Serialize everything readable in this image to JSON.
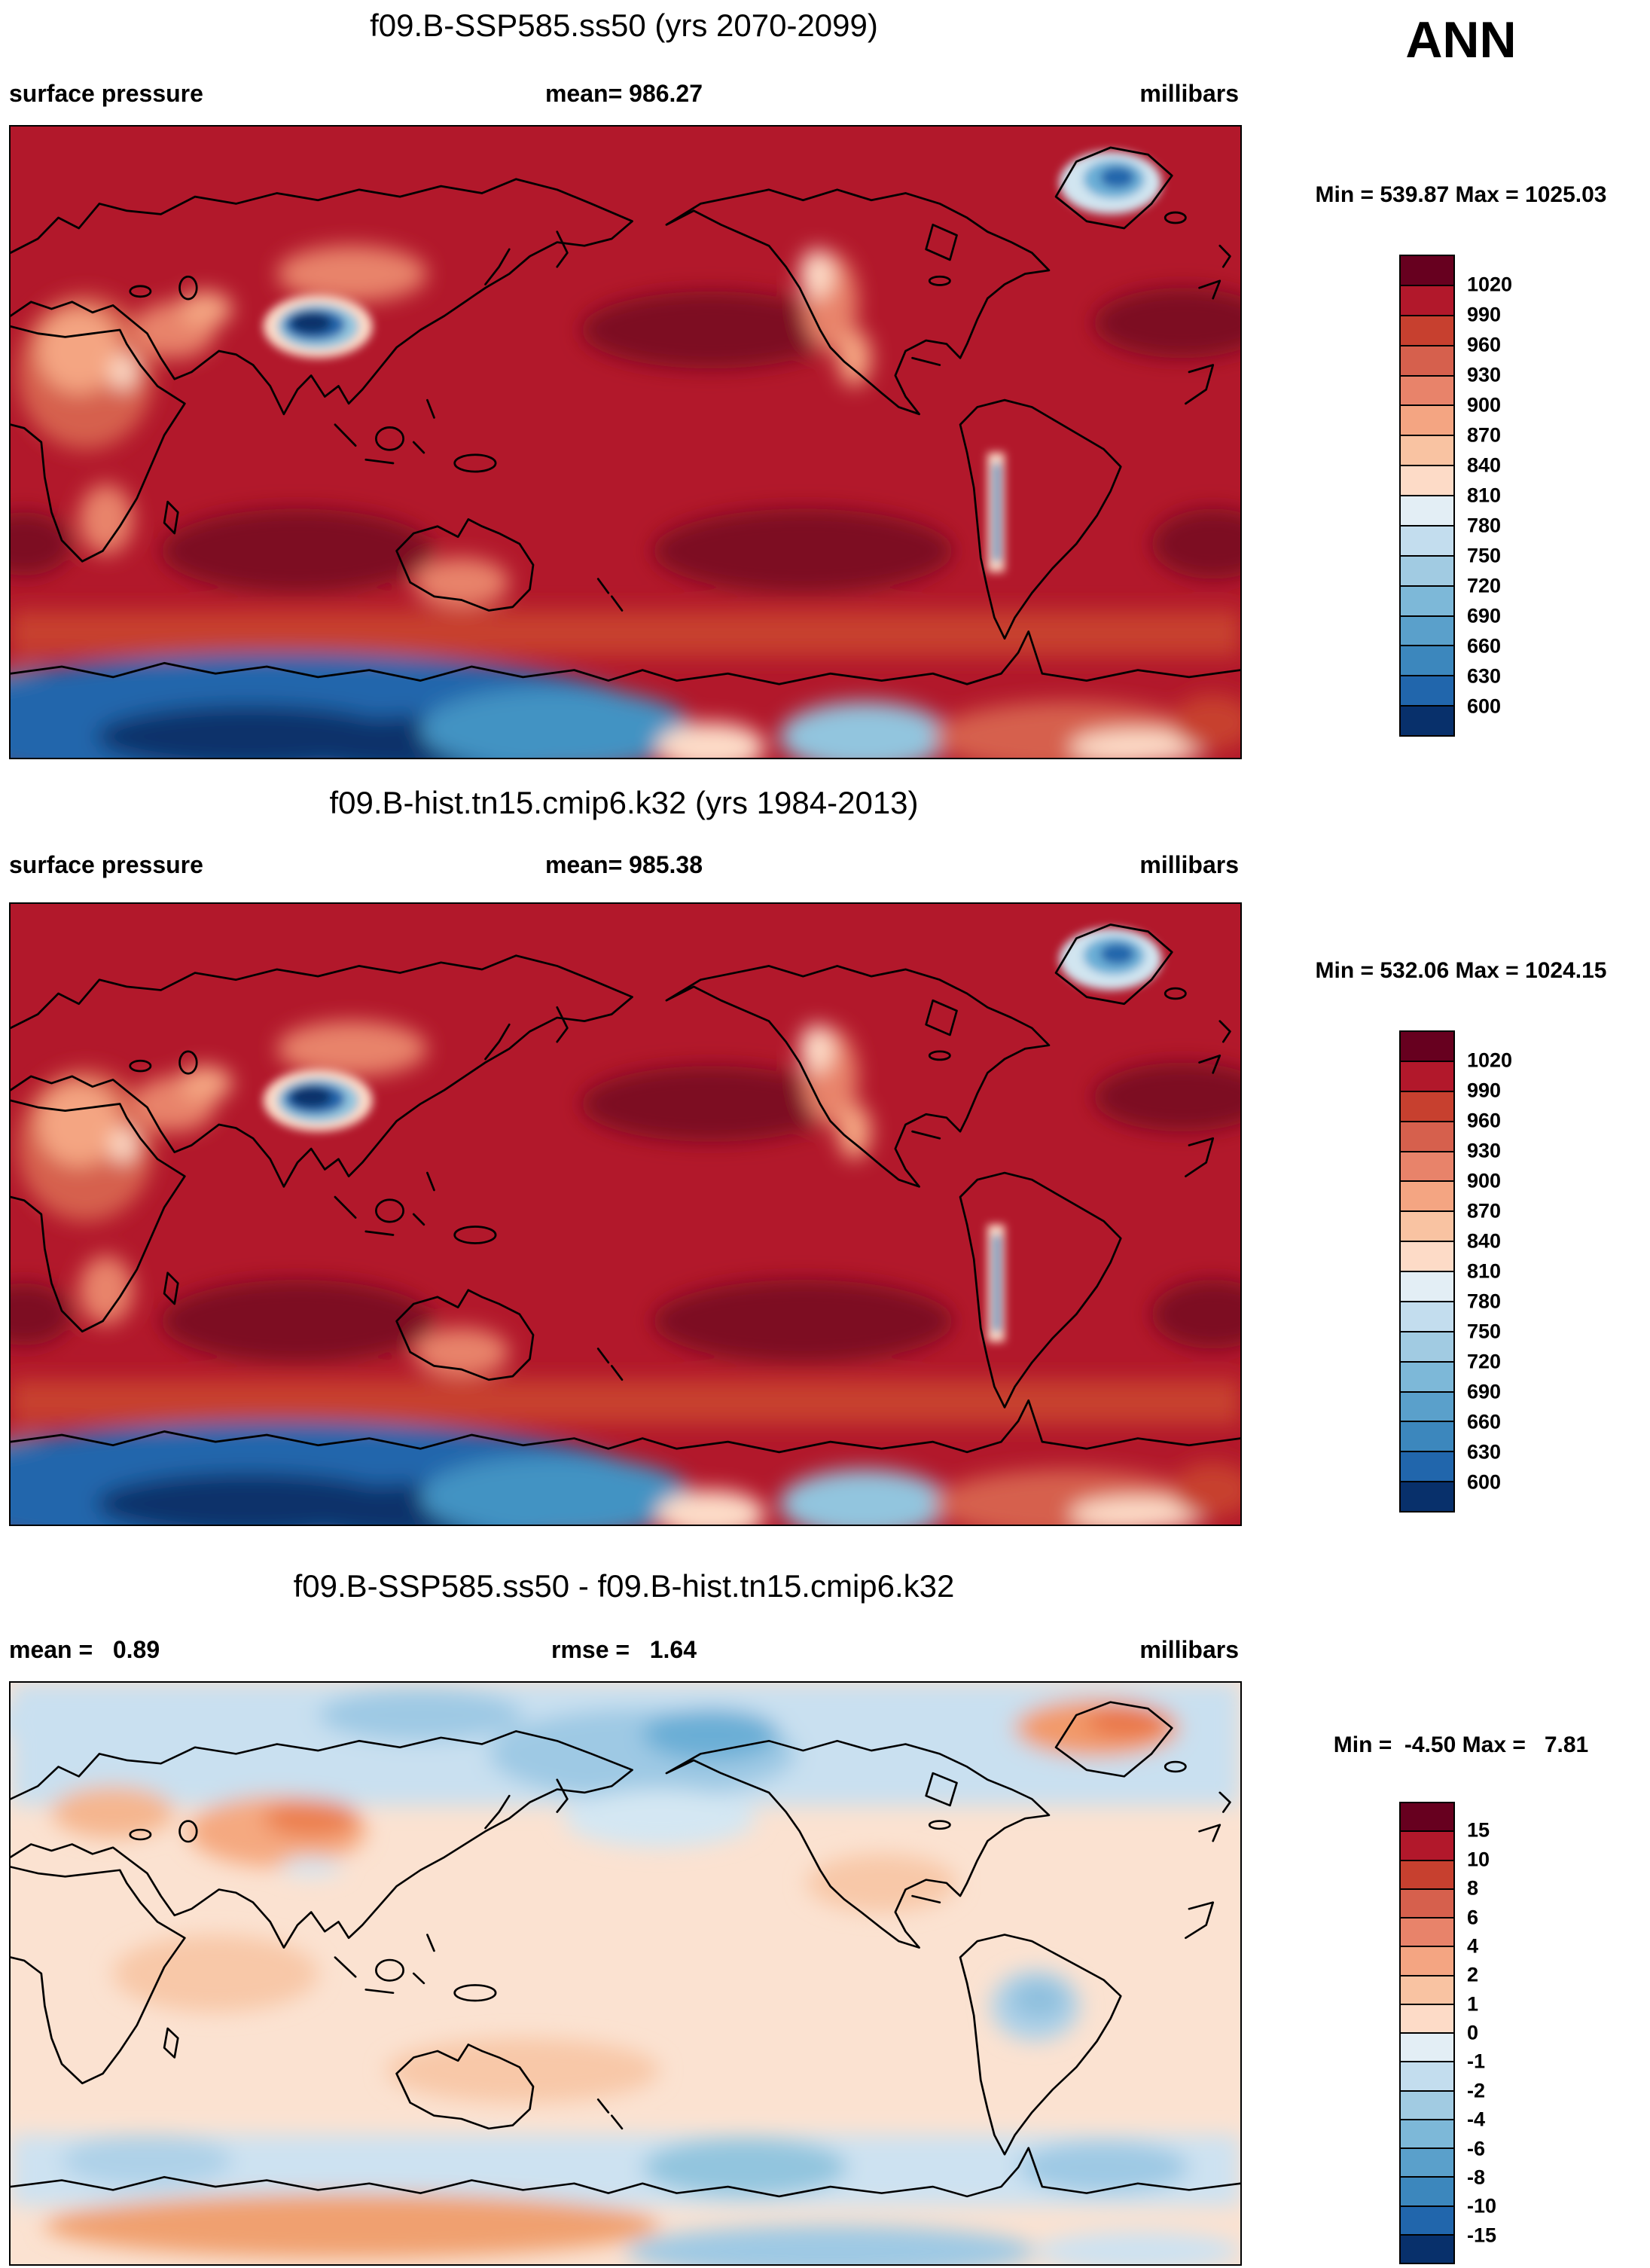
{
  "season": "ANN",
  "panels": [
    {
      "title": "f09.B-SSP585.ss50 (yrs 2070-2099)",
      "stats_left": "surface pressure",
      "stats_mid": "mean= 986.27",
      "stats_right": "millibars",
      "minmax": "Min = 539.87 Max = 1025.03",
      "colorbar": {
        "labels": [
          "1020",
          "990",
          "960",
          "930",
          "900",
          "870",
          "840",
          "810",
          "780",
          "750",
          "720",
          "690",
          "660",
          "630",
          "600"
        ],
        "colors": [
          "#67001f",
          "#b2182b",
          "#c7402f",
          "#d6604d",
          "#e8836a",
          "#f4a582",
          "#f9c3a2",
          "#fddbc7",
          "#e3eef5",
          "#c3ddee",
          "#a1cbe2",
          "#7db8d8",
          "#5aa0cb",
          "#3c87bd",
          "#2166ac",
          "#08306b"
        ]
      }
    },
    {
      "title": "f09.B-hist.tn15.cmip6.k32 (yrs 1984-2013)",
      "stats_left": "surface pressure",
      "stats_mid": "mean= 985.38",
      "stats_right": "millibars",
      "minmax": "Min = 532.06 Max = 1024.15",
      "colorbar": {
        "labels": [
          "1020",
          "990",
          "960",
          "930",
          "900",
          "870",
          "840",
          "810",
          "780",
          "750",
          "720",
          "690",
          "660",
          "630",
          "600"
        ],
        "colors": [
          "#67001f",
          "#b2182b",
          "#c7402f",
          "#d6604d",
          "#e8836a",
          "#f4a582",
          "#f9c3a2",
          "#fddbc7",
          "#e3eef5",
          "#c3ddee",
          "#a1cbe2",
          "#7db8d8",
          "#5aa0cb",
          "#3c87bd",
          "#2166ac",
          "#08306b"
        ]
      }
    },
    {
      "title": "f09.B-SSP585.ss50 - f09.B-hist.tn15.cmip6.k32",
      "stats_left": "mean =   0.89",
      "stats_mid": "rmse =   1.64",
      "stats_right": "millibars",
      "minmax": "Min =  -4.50 Max =   7.81",
      "colorbar": {
        "labels": [
          "15",
          "10",
          "8",
          "6",
          "4",
          "2",
          "1",
          "0",
          "-1",
          "-2",
          "-4",
          "-6",
          "-8",
          "-10",
          "-15"
        ],
        "colors": [
          "#67001f",
          "#b2182b",
          "#c7402f",
          "#d6604d",
          "#e8836a",
          "#f4a582",
          "#f9c3a2",
          "#fddbc7",
          "#e3eef5",
          "#c3ddee",
          "#a1cbe2",
          "#7db8d8",
          "#5aa0cb",
          "#3c87bd",
          "#2166ac",
          "#08306b"
        ]
      }
    }
  ],
  "chart_data": [
    {
      "type": "heatmap",
      "subtype": "global-contour-map",
      "title": "f09.B-SSP585.ss50 (yrs 2070-2099)",
      "variable": "surface pressure",
      "units": "millibars",
      "season": "ANN",
      "mean": 986.27,
      "min": 539.87,
      "max": 1025.03,
      "contour_levels": [
        600,
        630,
        660,
        690,
        720,
        750,
        780,
        810,
        840,
        870,
        900,
        930,
        960,
        990,
        1020
      ],
      "legend_position": "right",
      "projection": "cylindrical equidistant, lon 0-360E, lat 90N-90S",
      "notable_features": "field mostly 990-1020 red; >1020 maroon subtropical highs; deep blue lows over Tibetan Plateau, Greenland, Andes and Antarctica"
    },
    {
      "type": "heatmap",
      "subtype": "global-contour-map",
      "title": "f09.B-hist.tn15.cmip6.k32 (yrs 1984-2013)",
      "variable": "surface pressure",
      "units": "millibars",
      "season": "ANN",
      "mean": 985.38,
      "min": 532.06,
      "max": 1024.15,
      "contour_levels": [
        600,
        630,
        660,
        690,
        720,
        750,
        780,
        810,
        840,
        870,
        900,
        930,
        960,
        990,
        1020
      ],
      "legend_position": "right",
      "projection": "cylindrical equidistant, lon 0-360E, lat 90N-90S",
      "notable_features": "same pattern as panel 1: maroon subtropical highs, blue Tibet/Greenland/Andes/Antarctica"
    },
    {
      "type": "heatmap",
      "subtype": "global-contour-map-difference",
      "title": "f09.B-SSP585.ss50 - f09.B-hist.tn15.cmip6.k32",
      "variable": "surface pressure difference",
      "units": "millibars",
      "season": "ANN",
      "mean": 0.89,
      "rmse": 1.64,
      "min": -4.5,
      "max": 7.81,
      "contour_levels": [
        -15,
        -10,
        -8,
        -6,
        -4,
        -2,
        -1,
        0,
        1,
        2,
        4,
        6,
        8,
        10,
        15
      ],
      "legend_position": "right",
      "projection": "cylindrical equidistant, lon 0-360E, lat 90N-90S",
      "notable_features": "pale orange positive anomaly over most low/mid latitudes; blue negative band over Arctic, North Pacific and Southern Ocean; orange maxima over central Asia and Greenland"
    }
  ]
}
